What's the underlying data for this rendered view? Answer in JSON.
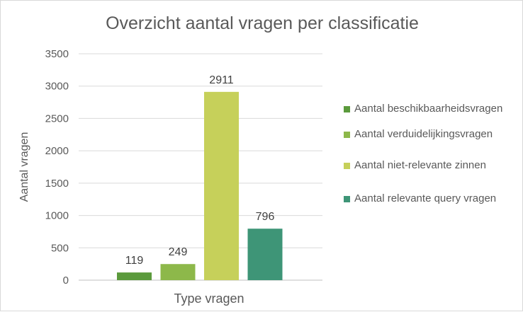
{
  "chart_data": {
    "type": "bar",
    "title": "Overzicht aantal vragen per classificatie",
    "xlabel": "Type vragen",
    "ylabel": "Aantal vragen",
    "ylim": [
      0,
      3500
    ],
    "yticks": [
      0,
      500,
      1000,
      1500,
      2000,
      2500,
      3000,
      3500
    ],
    "grid": true,
    "legend_position": "right",
    "series": [
      {
        "name": "Aantal beschikbaarheidsvragen",
        "values": [
          119
        ],
        "color": "#5b9a3c"
      },
      {
        "name": "Aantal verduidelijkingsvragen",
        "values": [
          249
        ],
        "color": "#8db84a"
      },
      {
        "name": "Aantal niet-relevante zinnen",
        "values": [
          2911
        ],
        "color": "#c6d05a"
      },
      {
        "name": "Aantal relevante query vragen",
        "values": [
          796
        ],
        "color": "#3e9577"
      }
    ]
  }
}
